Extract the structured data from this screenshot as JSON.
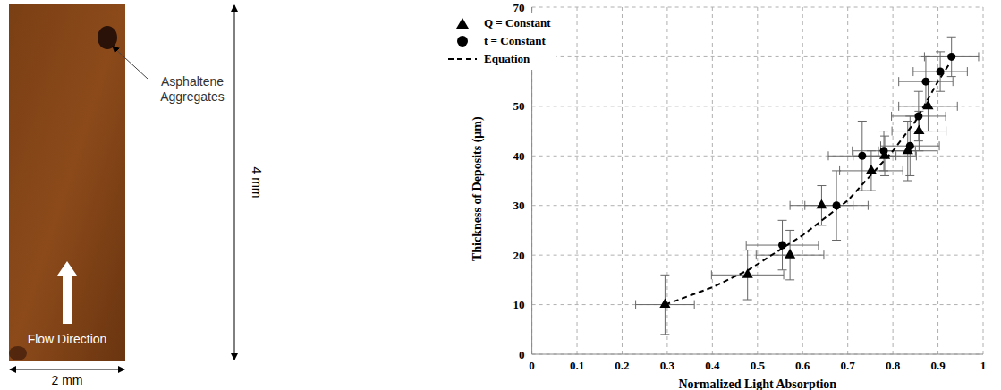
{
  "image_panel": {
    "annotation": "Asphaltene Aggregates",
    "flow_label": "Flow Direction",
    "height_label": "4 mm",
    "width_label": "2 mm"
  },
  "chart_data": {
    "type": "scatter",
    "x_label": "Normalized Light Absorption",
    "y_label": "Thickness of Deposits (μm)",
    "xlim": [
      0,
      1
    ],
    "xticks": [
      0,
      0.1,
      0.2,
      0.3,
      0.4,
      0.5,
      0.6,
      0.7,
      0.8,
      0.9,
      1
    ],
    "ylim": [
      0,
      70
    ],
    "yticks": [
      0,
      10,
      20,
      30,
      40,
      50,
      60,
      70
    ],
    "grid": true,
    "legend": "top-left",
    "series": [
      {
        "name": "Q = Constant",
        "type": "scatter",
        "marker": "triangle",
        "color": "#000000",
        "x": [
          0.295,
          0.478,
          0.572,
          0.642,
          0.752,
          0.782,
          0.833,
          0.858,
          0.878
        ],
        "values": [
          10,
          16,
          20,
          30,
          37,
          40,
          41,
          45,
          50
        ],
        "x_error": [
          0.065,
          0.08,
          0.075,
          0.07,
          0.07,
          0.07,
          0.065,
          0.06,
          0.065
        ],
        "y_error": [
          6,
          5,
          5,
          4,
          4,
          4,
          6,
          4,
          5
        ]
      },
      {
        "name": "t = Constant",
        "type": "scatter",
        "marker": "circle",
        "color": "#000000",
        "x": [
          0.555,
          0.675,
          0.732,
          0.78,
          0.838,
          0.857,
          0.873,
          0.905,
          0.93
        ],
        "values": [
          22,
          30,
          40,
          41,
          42,
          48,
          55,
          57,
          60
        ],
        "x_error": [
          0.08,
          0.07,
          0.075,
          0.07,
          0.065,
          0.06,
          0.06,
          0.06,
          0.06
        ],
        "y_error": [
          5,
          7,
          7,
          4,
          6,
          5,
          5,
          4,
          4
        ]
      },
      {
        "name": "Equation",
        "type": "line",
        "line_style": "dashed",
        "color": "#000000",
        "x": [
          0.295,
          0.4,
          0.48,
          0.6,
          0.7,
          0.8,
          0.85,
          0.9,
          0.925
        ],
        "values": [
          10,
          13.5,
          17,
          24,
          31,
          41,
          47,
          55,
          58.5
        ]
      }
    ]
  }
}
